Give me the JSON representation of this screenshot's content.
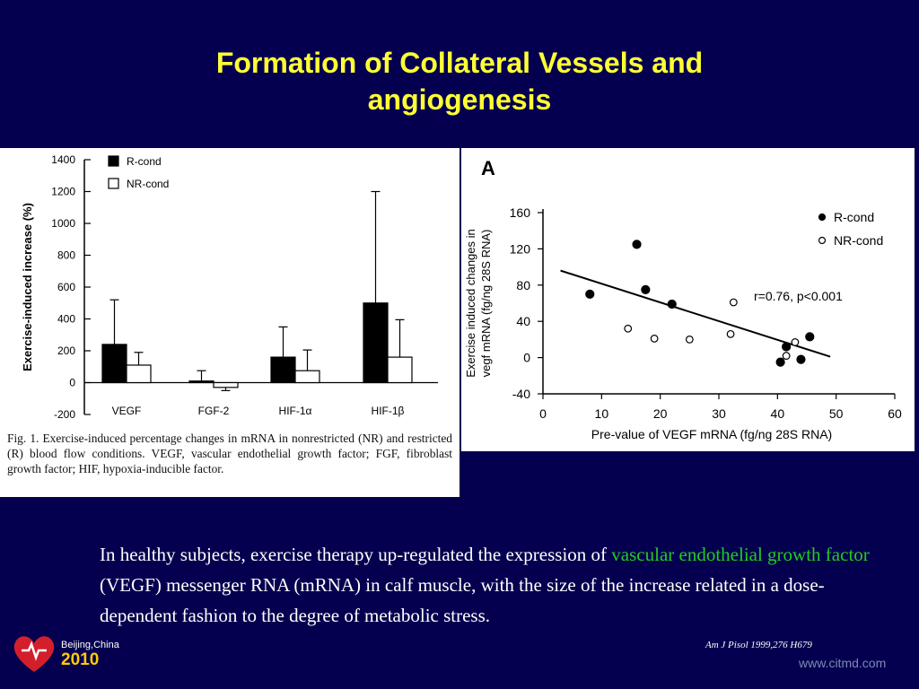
{
  "slide": {
    "title_line1": "Formation of Collateral Vessels and",
    "title_line2": "angiogenesis",
    "body_before": "In healthy subjects, exercise therapy up-regulated the expression of ",
    "body_highlight": "vascular endothelial growth factor",
    "body_after": " (VEGF) messenger RNA (mRNA) in calf muscle, with the size of the increase related in a dose-dependent fashion to the degree of metabolic stress.",
    "citation": "Am J Pisol 1999,276 H679",
    "logo_city": "Beijing,China",
    "logo_year": "2010",
    "watermark": "www.citmd.com",
    "highlight_color": "#22cc22",
    "title_color": "#ffff33",
    "background_color": "#04004f",
    "logo_icon": "heart-logo-icon"
  },
  "chart_data": [
    {
      "type": "bar",
      "ylabel": "Exercise-induced increase (%)",
      "ylim": [
        -200,
        1400
      ],
      "yticks": [
        1400,
        1200,
        1000,
        800,
        600,
        400,
        200,
        0,
        -200
      ],
      "categories": [
        "VEGF",
        "FGF-2",
        "HIF-1α",
        "HIF-1β"
      ],
      "series": [
        {
          "name": "R-cond",
          "color": "#000000",
          "values": [
            240,
            10,
            160,
            500
          ],
          "errors": [
            280,
            65,
            190,
            700
          ]
        },
        {
          "name": "NR-cond",
          "color": "#ffffff",
          "values": [
            110,
            -30,
            75,
            160
          ],
          "errors": [
            80,
            20,
            130,
            235
          ]
        }
      ],
      "legend_position": "top-left",
      "caption": "Fig. 1. Exercise-induced percentage changes in mRNA in nonrestricted (NR) and restricted (R) blood flow conditions. VEGF, vascular endothelial growth factor; FGF, fibroblast growth factor; HIF, hypoxia-inducible factor."
    },
    {
      "type": "scatter",
      "panel_label": "A",
      "xlabel": "Pre-value of VEGF mRNA (fg/ng 28S RNA)",
      "ylabel_line1": "Exercise induced changes in",
      "ylabel_line2": "vegf mRNA (fg/ng 28S RNA)",
      "xlim": [
        0,
        60
      ],
      "ylim": [
        -40,
        160
      ],
      "xticks": [
        0,
        10,
        20,
        30,
        40,
        50,
        60
      ],
      "yticks": [
        160,
        120,
        80,
        40,
        0,
        -40
      ],
      "series": [
        {
          "name": "R-cond",
          "marker": "filled",
          "points": [
            [
              8,
              70
            ],
            [
              16,
              125
            ],
            [
              17.5,
              75
            ],
            [
              22,
              59
            ],
            [
              40.5,
              -5
            ],
            [
              41.5,
              12
            ],
            [
              44,
              -2
            ],
            [
              45.5,
              23
            ]
          ]
        },
        {
          "name": "NR-cond",
          "marker": "open",
          "points": [
            [
              14.5,
              32
            ],
            [
              19,
              21
            ],
            [
              25,
              20
            ],
            [
              32,
              26
            ],
            [
              32.5,
              61
            ],
            [
              41.5,
              2
            ],
            [
              43,
              17
            ]
          ]
        }
      ],
      "regression": {
        "x": [
          3,
          49
        ],
        "y": [
          96,
          1
        ]
      },
      "annotation": "r=0.76, p<0.001",
      "legend_position": "top-right"
    }
  ]
}
